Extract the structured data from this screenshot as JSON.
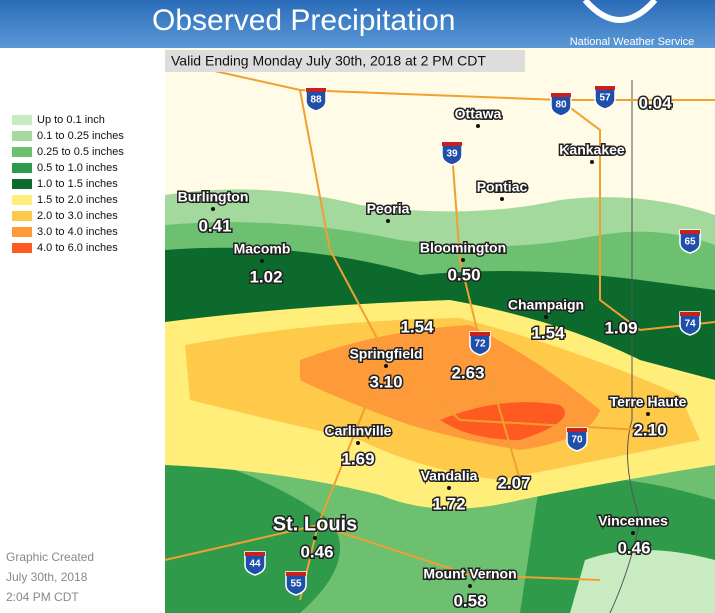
{
  "header": {
    "title": "Observed Precipitation",
    "agency": "National Weather Service",
    "valid": "Valid Ending Monday July 30th, 2018 at 2 PM CDT"
  },
  "legend": [
    {
      "label": "Up to 0.1 inch",
      "color": "#c9ebc2"
    },
    {
      "label": "0.1 to 0.25 inches",
      "color": "#a3d99c"
    },
    {
      "label": "0.25 to 0.5 inches",
      "color": "#6cc070"
    },
    {
      "label": "0.5 to 1.0 inches",
      "color": "#2f9a4a"
    },
    {
      "label": "1.0 to 1.5 inches",
      "color": "#0b6a2c"
    },
    {
      "label": "1.5 to 2.0 inches",
      "color": "#ffee7a"
    },
    {
      "label": "2.0 to 3.0 inches",
      "color": "#ffc94a"
    },
    {
      "label": "3.0 to 4.0 inches",
      "color": "#ff9a3a"
    },
    {
      "label": "4.0 to 6.0 inches",
      "color": "#ff5a22"
    }
  ],
  "places": [
    {
      "label": "Ottawa"
    },
    {
      "label": "Kankakee"
    },
    {
      "label": "Pontiac"
    },
    {
      "label": "Burlington",
      "value": "0.41"
    },
    {
      "label": "Peoria"
    },
    {
      "label": "Bloomington",
      "value": "0.50"
    },
    {
      "label": "Macomb",
      "value": "1.02"
    },
    {
      "label": "Champaign",
      "value": "1.54"
    },
    {
      "label": "Springfield",
      "value": "3.10"
    },
    {
      "label": "Terre Haute",
      "value": "2.10"
    },
    {
      "label": "Carlinville",
      "value": "1.69"
    },
    {
      "label": "Vandalia",
      "value": "1.72"
    },
    {
      "label": "St. Louis",
      "value": "0.46"
    },
    {
      "label": "Vincennes",
      "value": "0.46"
    },
    {
      "label": "Mount Vernon",
      "value": "0.58"
    }
  ],
  "values": [
    "0.04",
    "1.54",
    "1.09",
    "2.63",
    "2.07"
  ],
  "interstates": [
    "88",
    "80",
    "57",
    "39",
    "65",
    "74",
    "72",
    "70",
    "44",
    "55"
  ],
  "footer": [
    "Graphic Created",
    "July 30th, 2018",
    "2:04 PM CDT"
  ]
}
